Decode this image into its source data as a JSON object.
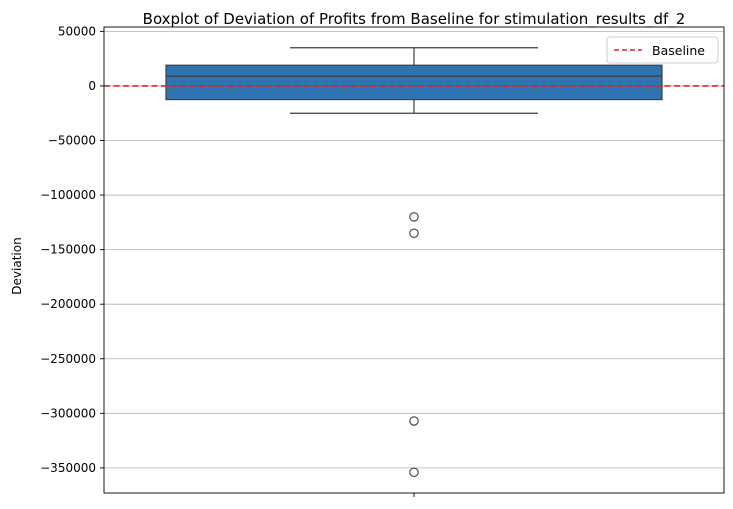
{
  "chart_data": {
    "type": "boxplot",
    "title": "Boxplot of Deviation of Profits from Baseline for stimulation_results_df_2",
    "xlabel": "",
    "ylabel": "Deviation",
    "ylim": [
      -373000,
      54000
    ],
    "yticks": [
      50000,
      0,
      -50000,
      -100000,
      -150000,
      -200000,
      -250000,
      -300000,
      -350000
    ],
    "ytick_labels": [
      "50000",
      "0",
      "−50000",
      "−100000",
      "−150000",
      "−200000",
      "−250000",
      "−300000",
      "−350000"
    ],
    "grid": {
      "y": true,
      "x": false
    },
    "box": {
      "whisker_low": -25000,
      "q1": -12500,
      "median": 9000,
      "q3": 19000,
      "whisker_high": 35000,
      "color": "#2f74b0",
      "outliers": [
        -120000,
        -135000,
        -307000,
        -354000
      ]
    },
    "baseline": {
      "value": 0,
      "label": "Baseline",
      "color": "#e8221c",
      "style": "dashed"
    },
    "legend": {
      "placement": "top-right",
      "entries": [
        "Baseline"
      ]
    }
  }
}
